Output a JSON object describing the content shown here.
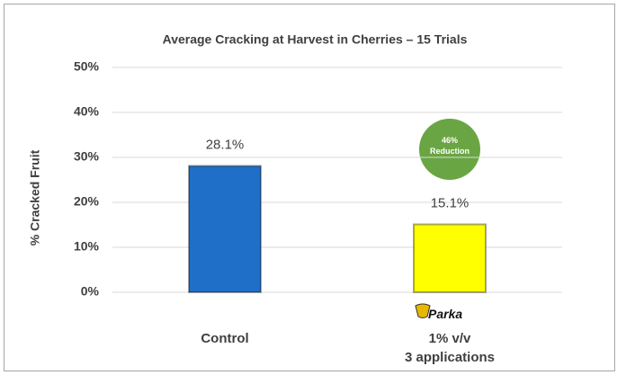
{
  "chart_data": {
    "type": "bar",
    "title": "Average Cracking at Harvest in Cherries – 15 Trials",
    "y_label": "% Cracked Fruit",
    "categories": [
      "Control",
      "1% v/v\n3 applications"
    ],
    "values": [
      28.1,
      15.1
    ],
    "value_labels": [
      "28.1%",
      "15.1%"
    ],
    "colors": [
      "#1f6fc8",
      "#ffff00"
    ],
    "ylim": [
      0,
      50
    ],
    "yticks": [
      {
        "value": 0,
        "label": "0%"
      },
      {
        "value": 10,
        "label": "10%"
      },
      {
        "value": 20,
        "label": "20%"
      },
      {
        "value": 30,
        "label": "30%"
      },
      {
        "value": 40,
        "label": "40%"
      },
      {
        "value": 50,
        "label": "50%"
      }
    ],
    "grid": true,
    "annotations": {
      "badge": "46% Reduction",
      "logo": "Parka"
    }
  }
}
